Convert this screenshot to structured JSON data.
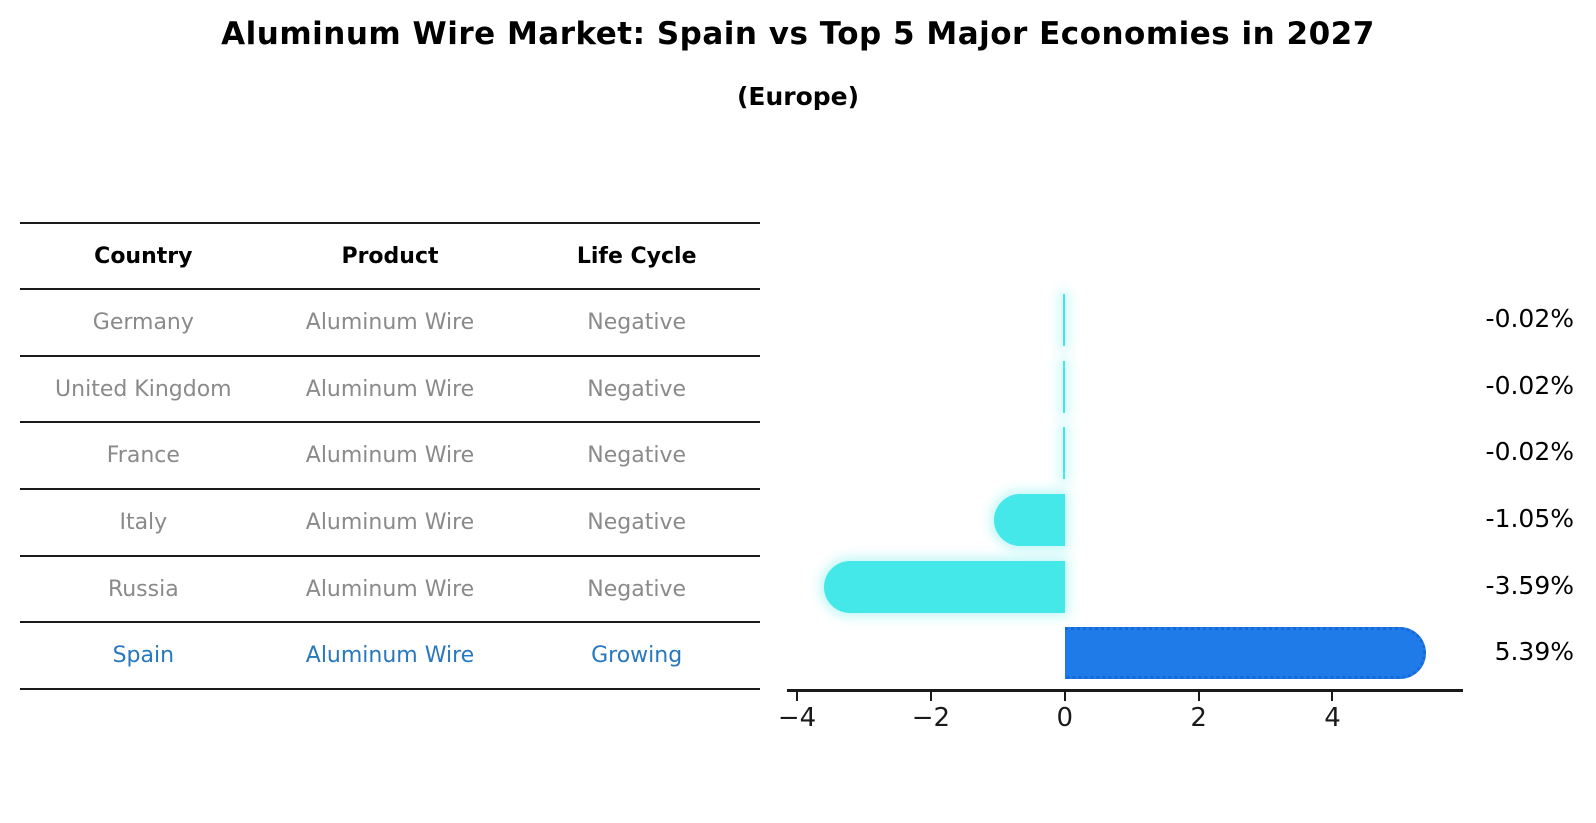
{
  "header": {
    "title": "Aluminum Wire Market: Spain vs Top 5 Major Economies in 2027",
    "subtitle": "(Europe)"
  },
  "table": {
    "columns": [
      "Country",
      "Product",
      "Life Cycle"
    ],
    "rows": [
      {
        "country": "Germany",
        "product": "Aluminum Wire",
        "life_cycle": "Negative",
        "highlight": false
      },
      {
        "country": "United Kingdom",
        "product": "Aluminum Wire",
        "life_cycle": "Negative",
        "highlight": false
      },
      {
        "country": "France",
        "product": "Aluminum Wire",
        "life_cycle": "Negative",
        "highlight": false
      },
      {
        "country": "Italy",
        "product": "Aluminum Wire",
        "life_cycle": "Negative",
        "highlight": false
      },
      {
        "country": "Russia",
        "product": "Aluminum Wire",
        "life_cycle": "Negative",
        "highlight": false
      },
      {
        "country": "Spain",
        "product": "Aluminum Wire",
        "life_cycle": "Growing",
        "highlight": true
      }
    ]
  },
  "chart_data": {
    "type": "bar",
    "orientation": "horizontal",
    "title": "Aluminum Wire Market: Spain vs Top 5 Major Economies in 2027",
    "subtitle": "(Europe)",
    "categories": [
      "Germany",
      "United Kingdom",
      "France",
      "Italy",
      "Russia",
      "Spain"
    ],
    "values": [
      -0.02,
      -0.02,
      -0.02,
      -1.05,
      -3.59,
      5.39
    ],
    "value_labels": [
      "-0.02%",
      "-0.02%",
      "-0.02%",
      "-1.05%",
      "-3.59%",
      "5.39%"
    ],
    "xlim": [
      -4.15,
      5.95
    ],
    "x_tick_values": [
      -4,
      -2,
      0,
      2,
      4
    ],
    "x_tick_labels": [
      "−4",
      "−2",
      "0",
      "2",
      "4"
    ],
    "grid": false,
    "legend": "none",
    "colors": {
      "negative_bar": "#45e8e8",
      "positive_bar": "#1e7be8",
      "positive_border": "#1569d6",
      "muted_text": "#8a8a8a",
      "highlight_text": "#2878be",
      "axis": "#1a1a1a"
    }
  }
}
